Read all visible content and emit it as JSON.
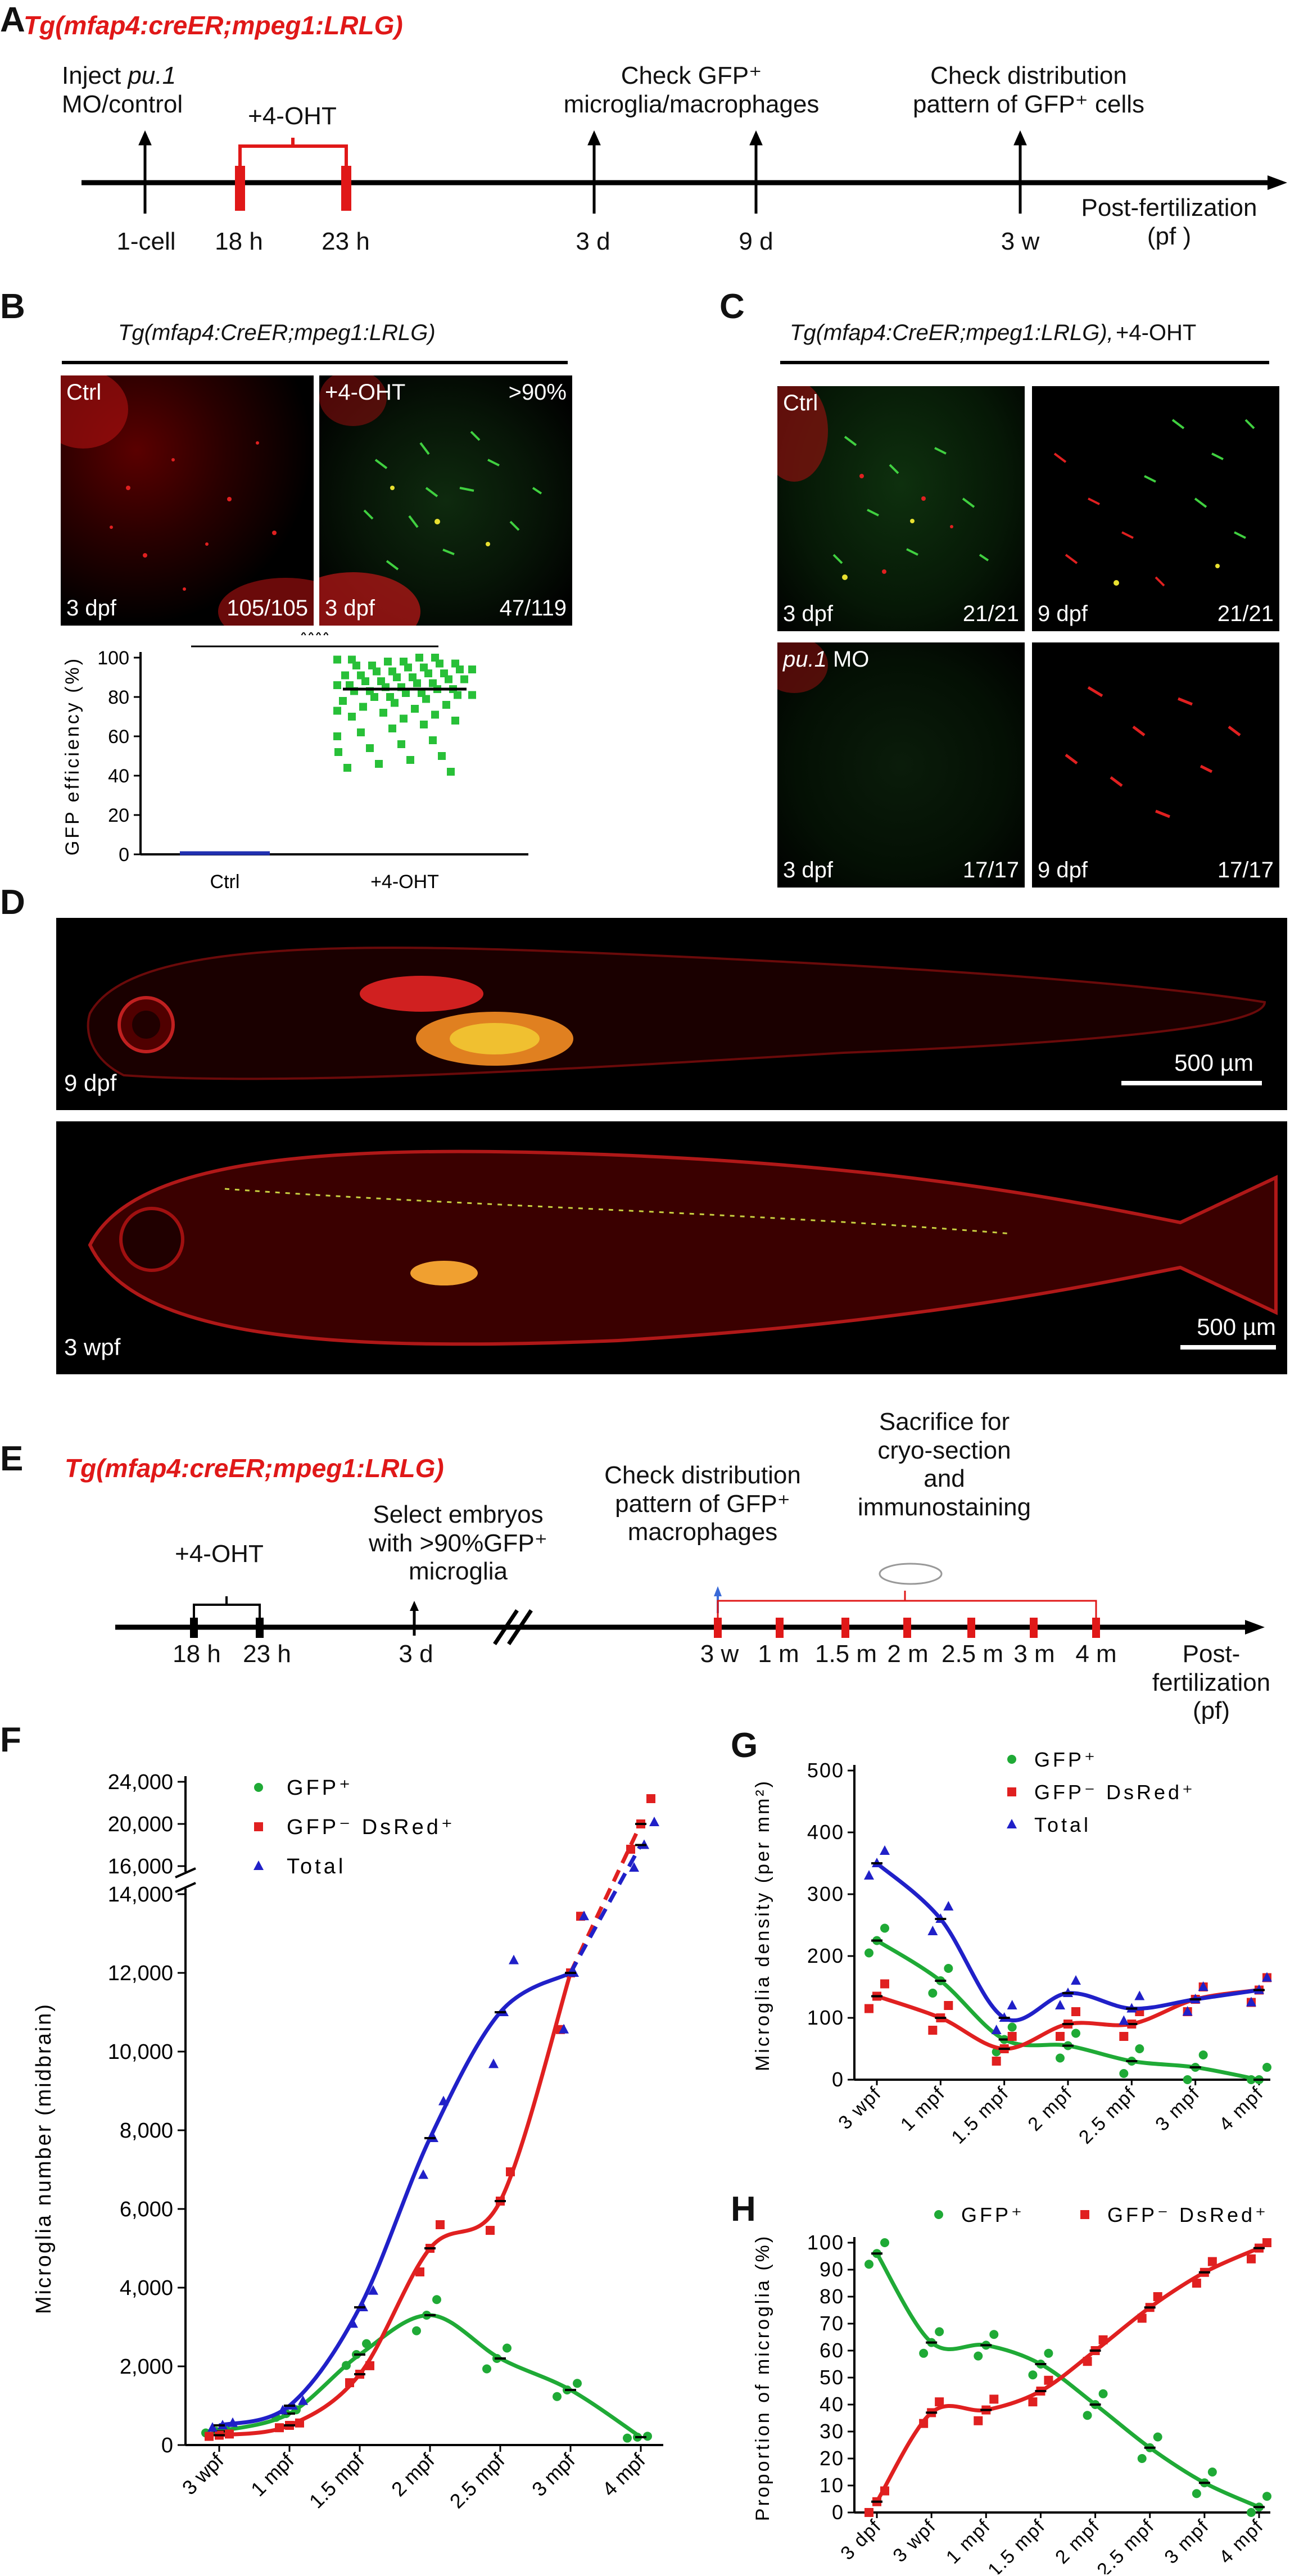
{
  "panelA": {
    "letter": "A",
    "title": "Tg(mfap4:creER;mpeg1:LRLG)",
    "inject_1": "Inject",
    "inject_2": "pu.1",
    "inject_3": "MO/control",
    "ohtt": "+4-OHT",
    "check1_1": "Check GFP⁺",
    "check1_2": "microglia/macrophages",
    "check2_1": "Check distribution",
    "check2_2": "pattern of GFP⁺ cells",
    "ticks": [
      "1-cell",
      "18 h",
      "23 h",
      "3 d",
      "9 d",
      "3 w"
    ],
    "axis_1": "Post-fertilization",
    "axis_2": "(pf )"
  },
  "panelB": {
    "letter": "B",
    "title": "Tg(mfap4:CreER;mpeg1:LRLG)",
    "img1": {
      "tl": "Ctrl",
      "bl": "3 dpf",
      "br": "105/105"
    },
    "img2": {
      "tl": "+4-OHT",
      "tr": ">90%",
      "bl": "3 dpf",
      "br": "47/119"
    },
    "sig": "****",
    "chart_data": {
      "type": "scatter",
      "ylabel": "GFP efficiency (%)",
      "categories": [
        "Ctrl",
        "+4-OHT"
      ],
      "ylim": [
        0,
        100
      ],
      "yticks": [
        0,
        20,
        40,
        60,
        80,
        100
      ],
      "means": [
        0,
        84
      ],
      "values_4oht": [
        100,
        100,
        99,
        99,
        98,
        98,
        97,
        97,
        96,
        96,
        95,
        95,
        94,
        94,
        93,
        93,
        92,
        92,
        91,
        91,
        90,
        90,
        89,
        89,
        88,
        88,
        87,
        87,
        86,
        86,
        85,
        85,
        84,
        84,
        83,
        83,
        82,
        82,
        81,
        81,
        80,
        80,
        79,
        78,
        77,
        76,
        75,
        74,
        73,
        72,
        71,
        70,
        69,
        68,
        66,
        64,
        62,
        60,
        58,
        56,
        54,
        52,
        50,
        48,
        46,
        44,
        42
      ]
    }
  },
  "panelC": {
    "letter": "C",
    "title": "Tg(mfap4:CreER;mpeg1:LRLG),",
    "title2": "+4-OHT",
    "imgs": [
      {
        "tl": "Ctrl",
        "bl": "3 dpf",
        "br": "21/21"
      },
      {
        "bl": "9 dpf",
        "br": "21/21"
      },
      {
        "tl": "pu.1",
        "tl2": "MO",
        "bl": "3 dpf",
        "br": "17/17"
      },
      {
        "bl": "9 dpf",
        "br": "17/17"
      }
    ]
  },
  "panelD": {
    "letter": "D",
    "img1": {
      "bl": "9 dpf",
      "scale": "500 µm"
    },
    "img2": {
      "bl": "3 wpf",
      "scale": "500 µm"
    }
  },
  "panelE": {
    "letter": "E",
    "title": "Tg(mfap4:creER;mpeg1:LRLG)",
    "ohtt": "+4-OHT",
    "select_1": "Select embryos",
    "select_2": "with >90%GFP⁺",
    "select_3": "microglia",
    "check_1": "Check distribution",
    "check_2": "pattern of GFP⁺",
    "check_3": "macrophages",
    "sac_1": "Sacrifice for",
    "sac_2": "cryo-section",
    "sac_3": "and",
    "sac_4": "immunostaining",
    "ticks": [
      "18 h",
      "23 h",
      "3 d",
      "3 w",
      "1 m",
      "1.5 m",
      "2 m",
      "2.5 m",
      "3 m",
      "4 m"
    ],
    "axis_1": "Post-",
    "axis_2": "fertilization",
    "axis_3": "(pf)"
  },
  "panelF": {
    "letter": "F",
    "legend": [
      "GFP⁺",
      "GFP⁻ DsRed⁺",
      "Total"
    ],
    "chart_data": {
      "type": "line",
      "ylabel": "Microglia number (midbrain)",
      "categories": [
        "3 wpf",
        "1 mpf",
        "1.5 mpf",
        "2 mpf",
        "2.5 mpf",
        "3 mpf",
        "4 mpf"
      ],
      "yticks_lower": [
        0,
        2000,
        4000,
        6000,
        8000,
        10000,
        12000,
        14000
      ],
      "yticks_upper": [
        16000,
        20000,
        24000
      ],
      "series": [
        {
          "name": "GFP⁺",
          "color": "#1faa36",
          "means": [
            350,
            800,
            2300,
            3300,
            2200,
            1400,
            200
          ],
          "x": [
            0.0,
            0.5,
            1.0,
            1.5,
            2.0,
            2.5,
            3.0
          ]
        },
        {
          "name": "GFP⁻ DsRed⁺",
          "color": "#e02020",
          "means": [
            250,
            500,
            1800,
            5000,
            6200,
            12000,
            20000
          ]
        },
        {
          "name": "Total",
          "color": "#2020c8",
          "means": [
            500,
            1000,
            3500,
            7800,
            11000,
            12000,
            18000
          ]
        }
      ]
    }
  },
  "panelG": {
    "letter": "G",
    "legend": [
      "GFP⁺",
      "GFP⁻ DsRed⁺",
      "Total"
    ],
    "chart_data": {
      "type": "line",
      "ylabel": "Microglia density (per mm²)",
      "categories": [
        "3 wpf",
        "1 mpf",
        "1.5 mpf",
        "2 mpf",
        "2.5 mpf",
        "3 mpf",
        "4 mpf"
      ],
      "ylim": [
        0,
        500
      ],
      "yticks": [
        0,
        100,
        200,
        300,
        400,
        500
      ],
      "series": [
        {
          "name": "GFP⁺",
          "color": "#1faa36",
          "means": [
            225,
            160,
            65,
            55,
            30,
            20,
            0
          ]
        },
        {
          "name": "GFP⁻ DsRed⁺",
          "color": "#e02020",
          "means": [
            135,
            100,
            50,
            90,
            90,
            130,
            145
          ]
        },
        {
          "name": "Total",
          "color": "#2020c8",
          "means": [
            350,
            260,
            100,
            140,
            115,
            130,
            145
          ]
        }
      ]
    }
  },
  "panelH": {
    "letter": "H",
    "legend": [
      "GFP⁺",
      "GFP⁻ DsRed⁺"
    ],
    "chart_data": {
      "type": "line",
      "ylabel": "Proportion of microglia (%)",
      "categories": [
        "3 dpf",
        "3 wpf",
        "1 mpf",
        "1.5 mpf",
        "2 mpf",
        "2.5 mpf",
        "3 mpf",
        "4 mpf"
      ],
      "ylim": [
        0,
        100
      ],
      "yticks": [
        0,
        10,
        20,
        30,
        40,
        50,
        60,
        70,
        80,
        90,
        100
      ],
      "series": [
        {
          "name": "GFP⁺",
          "color": "#1faa36",
          "means": [
            96,
            63,
            62,
            55,
            40,
            24,
            11,
            2
          ]
        },
        {
          "name": "GFP⁻ DsRed⁺",
          "color": "#e02020",
          "means": [
            4,
            37,
            38,
            45,
            60,
            76,
            89,
            98
          ]
        }
      ]
    }
  }
}
